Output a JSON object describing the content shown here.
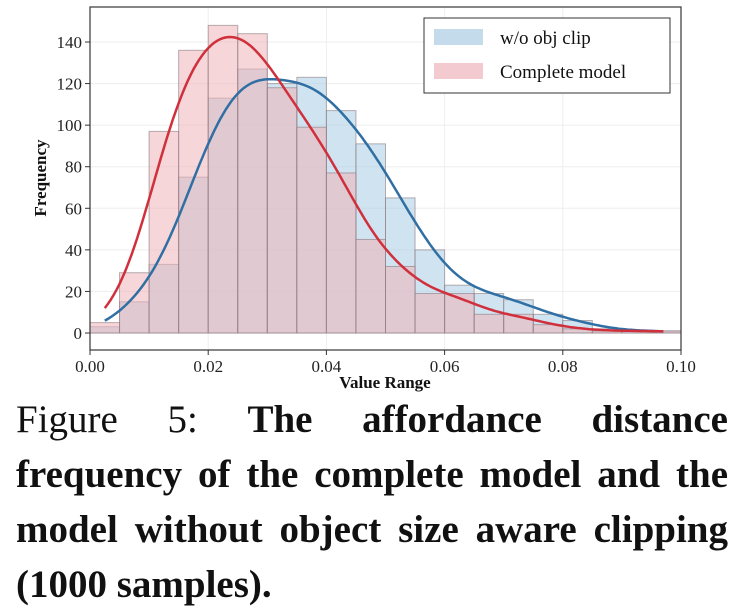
{
  "chart_data": {
    "type": "bar",
    "subtype": "overlaid histogram with KDE curves",
    "xlabel": "Value Range",
    "ylabel": "Frequency",
    "xlim": [
      0.0,
      0.1
    ],
    "ylim": [
      0,
      150
    ],
    "xticks": [
      "0.00",
      "0.02",
      "0.04",
      "0.06",
      "0.08",
      "0.10"
    ],
    "yticks": [
      "0",
      "20",
      "40",
      "60",
      "80",
      "100",
      "120",
      "140"
    ],
    "grid": true,
    "legend_position": "top-right",
    "bin_width": 0.005,
    "bin_starts": [
      0.0,
      0.005,
      0.01,
      0.015,
      0.02,
      0.025,
      0.03,
      0.035,
      0.04,
      0.045,
      0.05,
      0.055,
      0.06,
      0.065,
      0.07,
      0.075,
      0.08,
      0.085,
      0.09,
      0.095
    ],
    "series": [
      {
        "name": "w/o obj clip",
        "color": "#2f6fa3",
        "fill": "#a9cce3",
        "values": [
          3,
          15,
          33,
          75,
          113,
          127,
          120,
          123,
          107,
          91,
          65,
          40,
          23,
          19,
          16,
          9,
          6,
          2,
          1,
          1
        ]
      },
      {
        "name": "Complete model",
        "color": "#d0303c",
        "fill": "#eeb4ba",
        "values": [
          5,
          29,
          97,
          136,
          148,
          144,
          118,
          99,
          77,
          45,
          32,
          19,
          19,
          9,
          9,
          4,
          2,
          1,
          1,
          1
        ]
      }
    ]
  },
  "caption": {
    "label": "Figure 5:",
    "text": "The affordance distance frequency of the complete model and the model without object size aware clipping (1000 samples)."
  }
}
